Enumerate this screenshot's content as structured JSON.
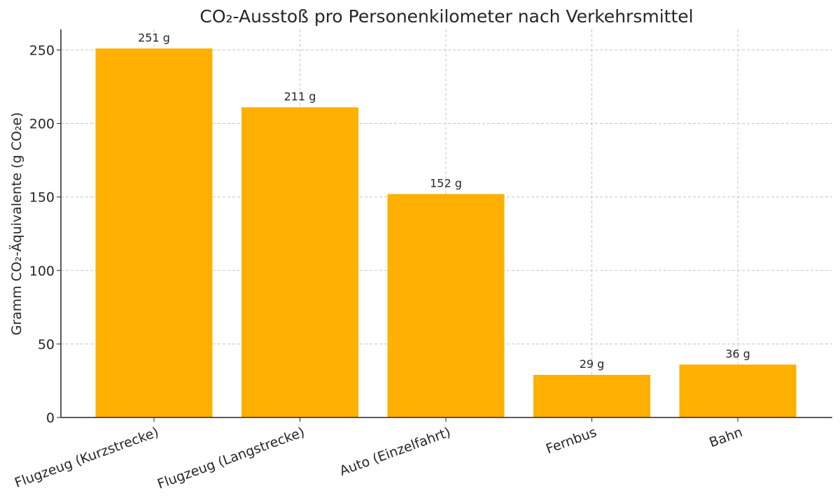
{
  "chart_data": {
    "type": "bar",
    "title": "CO₂-Ausstoß pro Personenkilometer nach Verkehrsmittel",
    "xlabel": "",
    "ylabel": "Gramm CO₂-Äquivalente (g CO₂e)",
    "categories": [
      "Flugzeug (Kurzstrecke)",
      "Flugzeug (Langstrecke)",
      "Auto (Einzelfahrt)",
      "Fernbus",
      "Bahn"
    ],
    "values": [
      251,
      211,
      152,
      29,
      36
    ],
    "data_labels": [
      "251 g",
      "211 g",
      "152 g",
      "29 g",
      "36 g"
    ],
    "ylim": [
      0,
      264
    ],
    "yticks": [
      0,
      50,
      100,
      150,
      200,
      250
    ],
    "grid": true,
    "bar_color": "#ffb000"
  }
}
